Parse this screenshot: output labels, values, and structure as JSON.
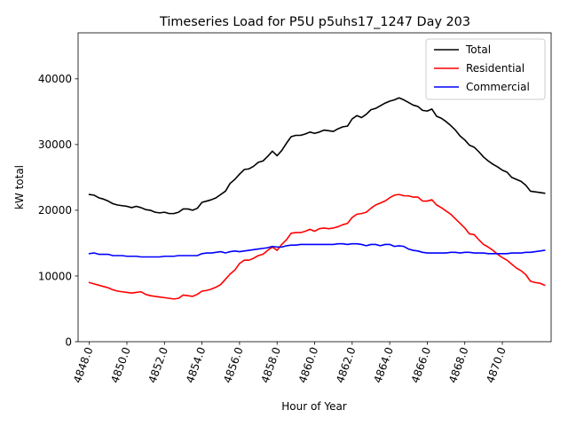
{
  "chart_data": {
    "type": "line",
    "title": "Timeseries Load for P5U p5uhs17_1247  Day 203",
    "xlabel": "Hour of Year",
    "ylabel": "kW total",
    "xlim": [
      4847.4,
      4872.6
    ],
    "ylim": [
      0,
      47000
    ],
    "xticks": [
      4848.0,
      4850.0,
      4852.0,
      4854.0,
      4856.0,
      4858.0,
      4860.0,
      4862.0,
      4864.0,
      4866.0,
      4868.0,
      4870.0
    ],
    "xtick_labels": [
      "4848.0",
      "4850.0",
      "4852.0",
      "4854.0",
      "4856.0",
      "4858.0",
      "4860.0",
      "4862.0",
      "4864.0",
      "4866.0",
      "4868.0",
      "4870.0"
    ],
    "yticks": [
      0,
      10000,
      20000,
      30000,
      40000
    ],
    "ytick_labels": [
      "0",
      "10000",
      "20000",
      "30000",
      "40000"
    ],
    "legend_position": "top-right",
    "x_start": 4848.0,
    "x_step": 0.25,
    "series": [
      {
        "name": "Total",
        "color": "#000000",
        "values": [
          22400,
          22300,
          21900,
          21700,
          21400,
          21000,
          20800,
          20700,
          20600,
          20400,
          20600,
          20400,
          20100,
          20000,
          19700,
          19600,
          19700,
          19500,
          19500,
          19700,
          20200,
          20200,
          20000,
          20300,
          21200,
          21400,
          21600,
          21900,
          22400,
          22900,
          24100,
          24700,
          25500,
          26200,
          26300,
          26700,
          27300,
          27500,
          28200,
          29000,
          28300,
          29100,
          30200,
          31200,
          31400,
          31400,
          31600,
          31900,
          31700,
          31900,
          32200,
          32100,
          32000,
          32400,
          32700,
          32800,
          33900,
          34400,
          34100,
          34600,
          35300,
          35500,
          35900,
          36300,
          36600,
          36800,
          37100,
          36800,
          36400,
          36000,
          35800,
          35200,
          35100,
          35400,
          34300,
          34000,
          33500,
          32900,
          32200,
          31300,
          30700,
          29900,
          29600,
          28900,
          28100,
          27500,
          27000,
          26600,
          26100,
          25800,
          25000,
          24700,
          24400,
          23800,
          22900,
          22800,
          22700,
          22600
        ]
      },
      {
        "name": "Residential",
        "color": "#ff0000",
        "values": [
          9000,
          8800,
          8600,
          8400,
          8200,
          7900,
          7700,
          7600,
          7500,
          7400,
          7500,
          7600,
          7200,
          7000,
          6900,
          6800,
          6700,
          6600,
          6500,
          6600,
          7100,
          7000,
          6900,
          7200,
          7700,
          7800,
          8000,
          8300,
          8700,
          9500,
          10300,
          10900,
          11900,
          12400,
          12400,
          12700,
          13100,
          13300,
          13900,
          14400,
          13900,
          14800,
          15500,
          16500,
          16600,
          16600,
          16800,
          17100,
          16800,
          17200,
          17300,
          17200,
          17300,
          17500,
          17800,
          18000,
          18900,
          19400,
          19500,
          19700,
          20300,
          20800,
          21100,
          21400,
          21900,
          22300,
          22400,
          22200,
          22200,
          22000,
          22000,
          21400,
          21400,
          21600,
          20800,
          20400,
          19900,
          19400,
          18700,
          18000,
          17300,
          16400,
          16300,
          15500,
          14800,
          14400,
          13900,
          13300,
          12800,
          12400,
          11800,
          11200,
          10800,
          10200,
          9200,
          9000,
          8900,
          8600
        ]
      },
      {
        "name": "Commercial",
        "color": "#0000ff",
        "values": [
          13400,
          13500,
          13300,
          13300,
          13300,
          13100,
          13100,
          13100,
          13000,
          13000,
          13000,
          12900,
          12900,
          12900,
          12900,
          12900,
          13000,
          13000,
          13000,
          13100,
          13100,
          13100,
          13100,
          13100,
          13400,
          13500,
          13500,
          13600,
          13700,
          13500,
          13700,
          13800,
          13700,
          13800,
          13900,
          14000,
          14100,
          14200,
          14300,
          14500,
          14400,
          14400,
          14600,
          14700,
          14700,
          14800,
          14800,
          14800,
          14800,
          14800,
          14800,
          14800,
          14800,
          14900,
          14900,
          14800,
          14900,
          14900,
          14800,
          14600,
          14800,
          14800,
          14600,
          14800,
          14800,
          14500,
          14600,
          14500,
          14100,
          13900,
          13800,
          13600,
          13500,
          13500,
          13500,
          13500,
          13500,
          13600,
          13600,
          13500,
          13600,
          13600,
          13500,
          13500,
          13500,
          13400,
          13400,
          13400,
          13400,
          13400,
          13500,
          13500,
          13500,
          13600,
          13600,
          13700,
          13800,
          13900
        ]
      }
    ]
  }
}
